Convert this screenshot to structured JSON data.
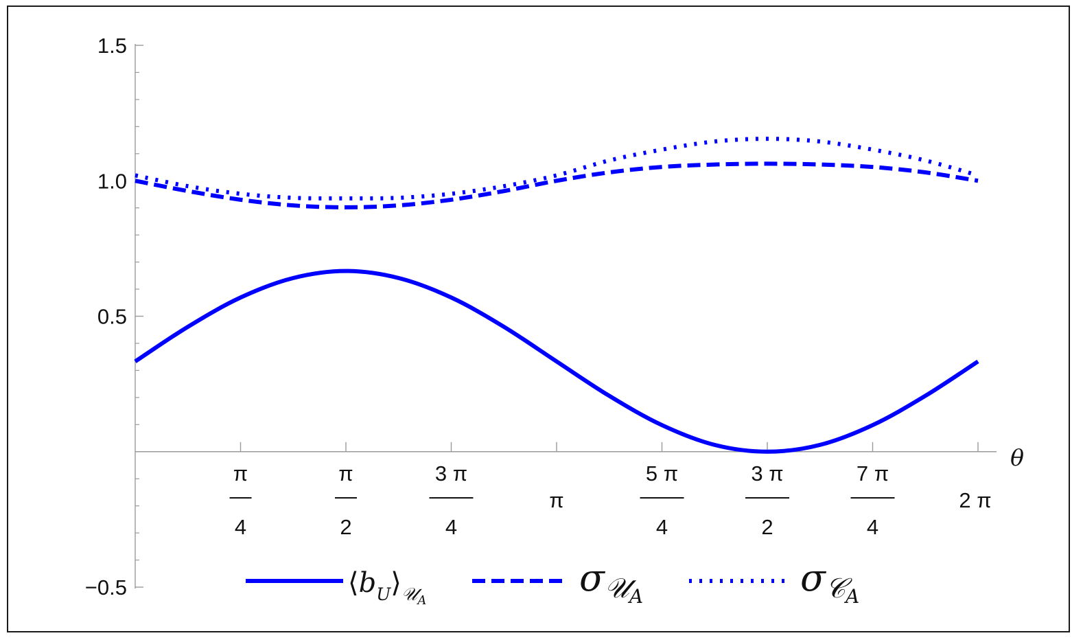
{
  "chart_data": {
    "type": "line",
    "xlabel": "θ",
    "ylabel": "",
    "xlim": [
      0,
      6.2832
    ],
    "ylim": [
      -0.5,
      1.5
    ],
    "grid": false,
    "legend_position": "bottom",
    "y_ticks": [
      {
        "value": -0.5,
        "label": "−0.5"
      },
      {
        "value": 0.5,
        "label": "0.5"
      },
      {
        "value": 1.0,
        "label": "1.0"
      },
      {
        "value": 1.5,
        "label": "1.5"
      }
    ],
    "x_ticks": [
      {
        "value": 0.7854,
        "num": "π",
        "den": "4"
      },
      {
        "value": 1.5708,
        "num": "π",
        "den": "2"
      },
      {
        "value": 2.3562,
        "num": "3 π",
        "den": "4"
      },
      {
        "value": 3.1416,
        "label": "π"
      },
      {
        "value": 3.927,
        "num": "5 π",
        "den": "4"
      },
      {
        "value": 4.7124,
        "num": "3 π",
        "den": "2"
      },
      {
        "value": 5.4978,
        "num": "7 π",
        "den": "4"
      },
      {
        "value": 6.2832,
        "label": "2 π"
      }
    ],
    "x": [
      0,
      0.3927,
      0.7854,
      1.1781,
      1.5708,
      1.9635,
      2.3562,
      2.7489,
      3.1416,
      3.5343,
      3.927,
      4.3197,
      4.7124,
      5.1051,
      5.4978,
      5.8905,
      6.2832
    ],
    "series": [
      {
        "name": "⟨b_U⟩_{U_A}",
        "style": "solid",
        "color": "#0000ff",
        "values": [
          0.333,
          0.461,
          0.569,
          0.641,
          0.667,
          0.641,
          0.569,
          0.461,
          0.333,
          0.206,
          0.098,
          0.025,
          0.0,
          0.025,
          0.098,
          0.206,
          0.333
        ]
      },
      {
        "name": "σ_{U_A}",
        "style": "dashed",
        "color": "#0000ff",
        "values": [
          1.0,
          0.962,
          0.93,
          0.909,
          0.902,
          0.909,
          0.93,
          0.962,
          1.0,
          1.031,
          1.051,
          1.06,
          1.063,
          1.06,
          1.051,
          1.031,
          1.0
        ]
      },
      {
        "name": "σ_{C_A}",
        "style": "dotted",
        "color": "#0000ff",
        "values": [
          1.02,
          0.98,
          0.952,
          0.937,
          0.935,
          0.937,
          0.952,
          0.98,
          1.02,
          1.075,
          1.115,
          1.145,
          1.155,
          1.145,
          1.115,
          1.075,
          1.02
        ]
      }
    ]
  }
}
